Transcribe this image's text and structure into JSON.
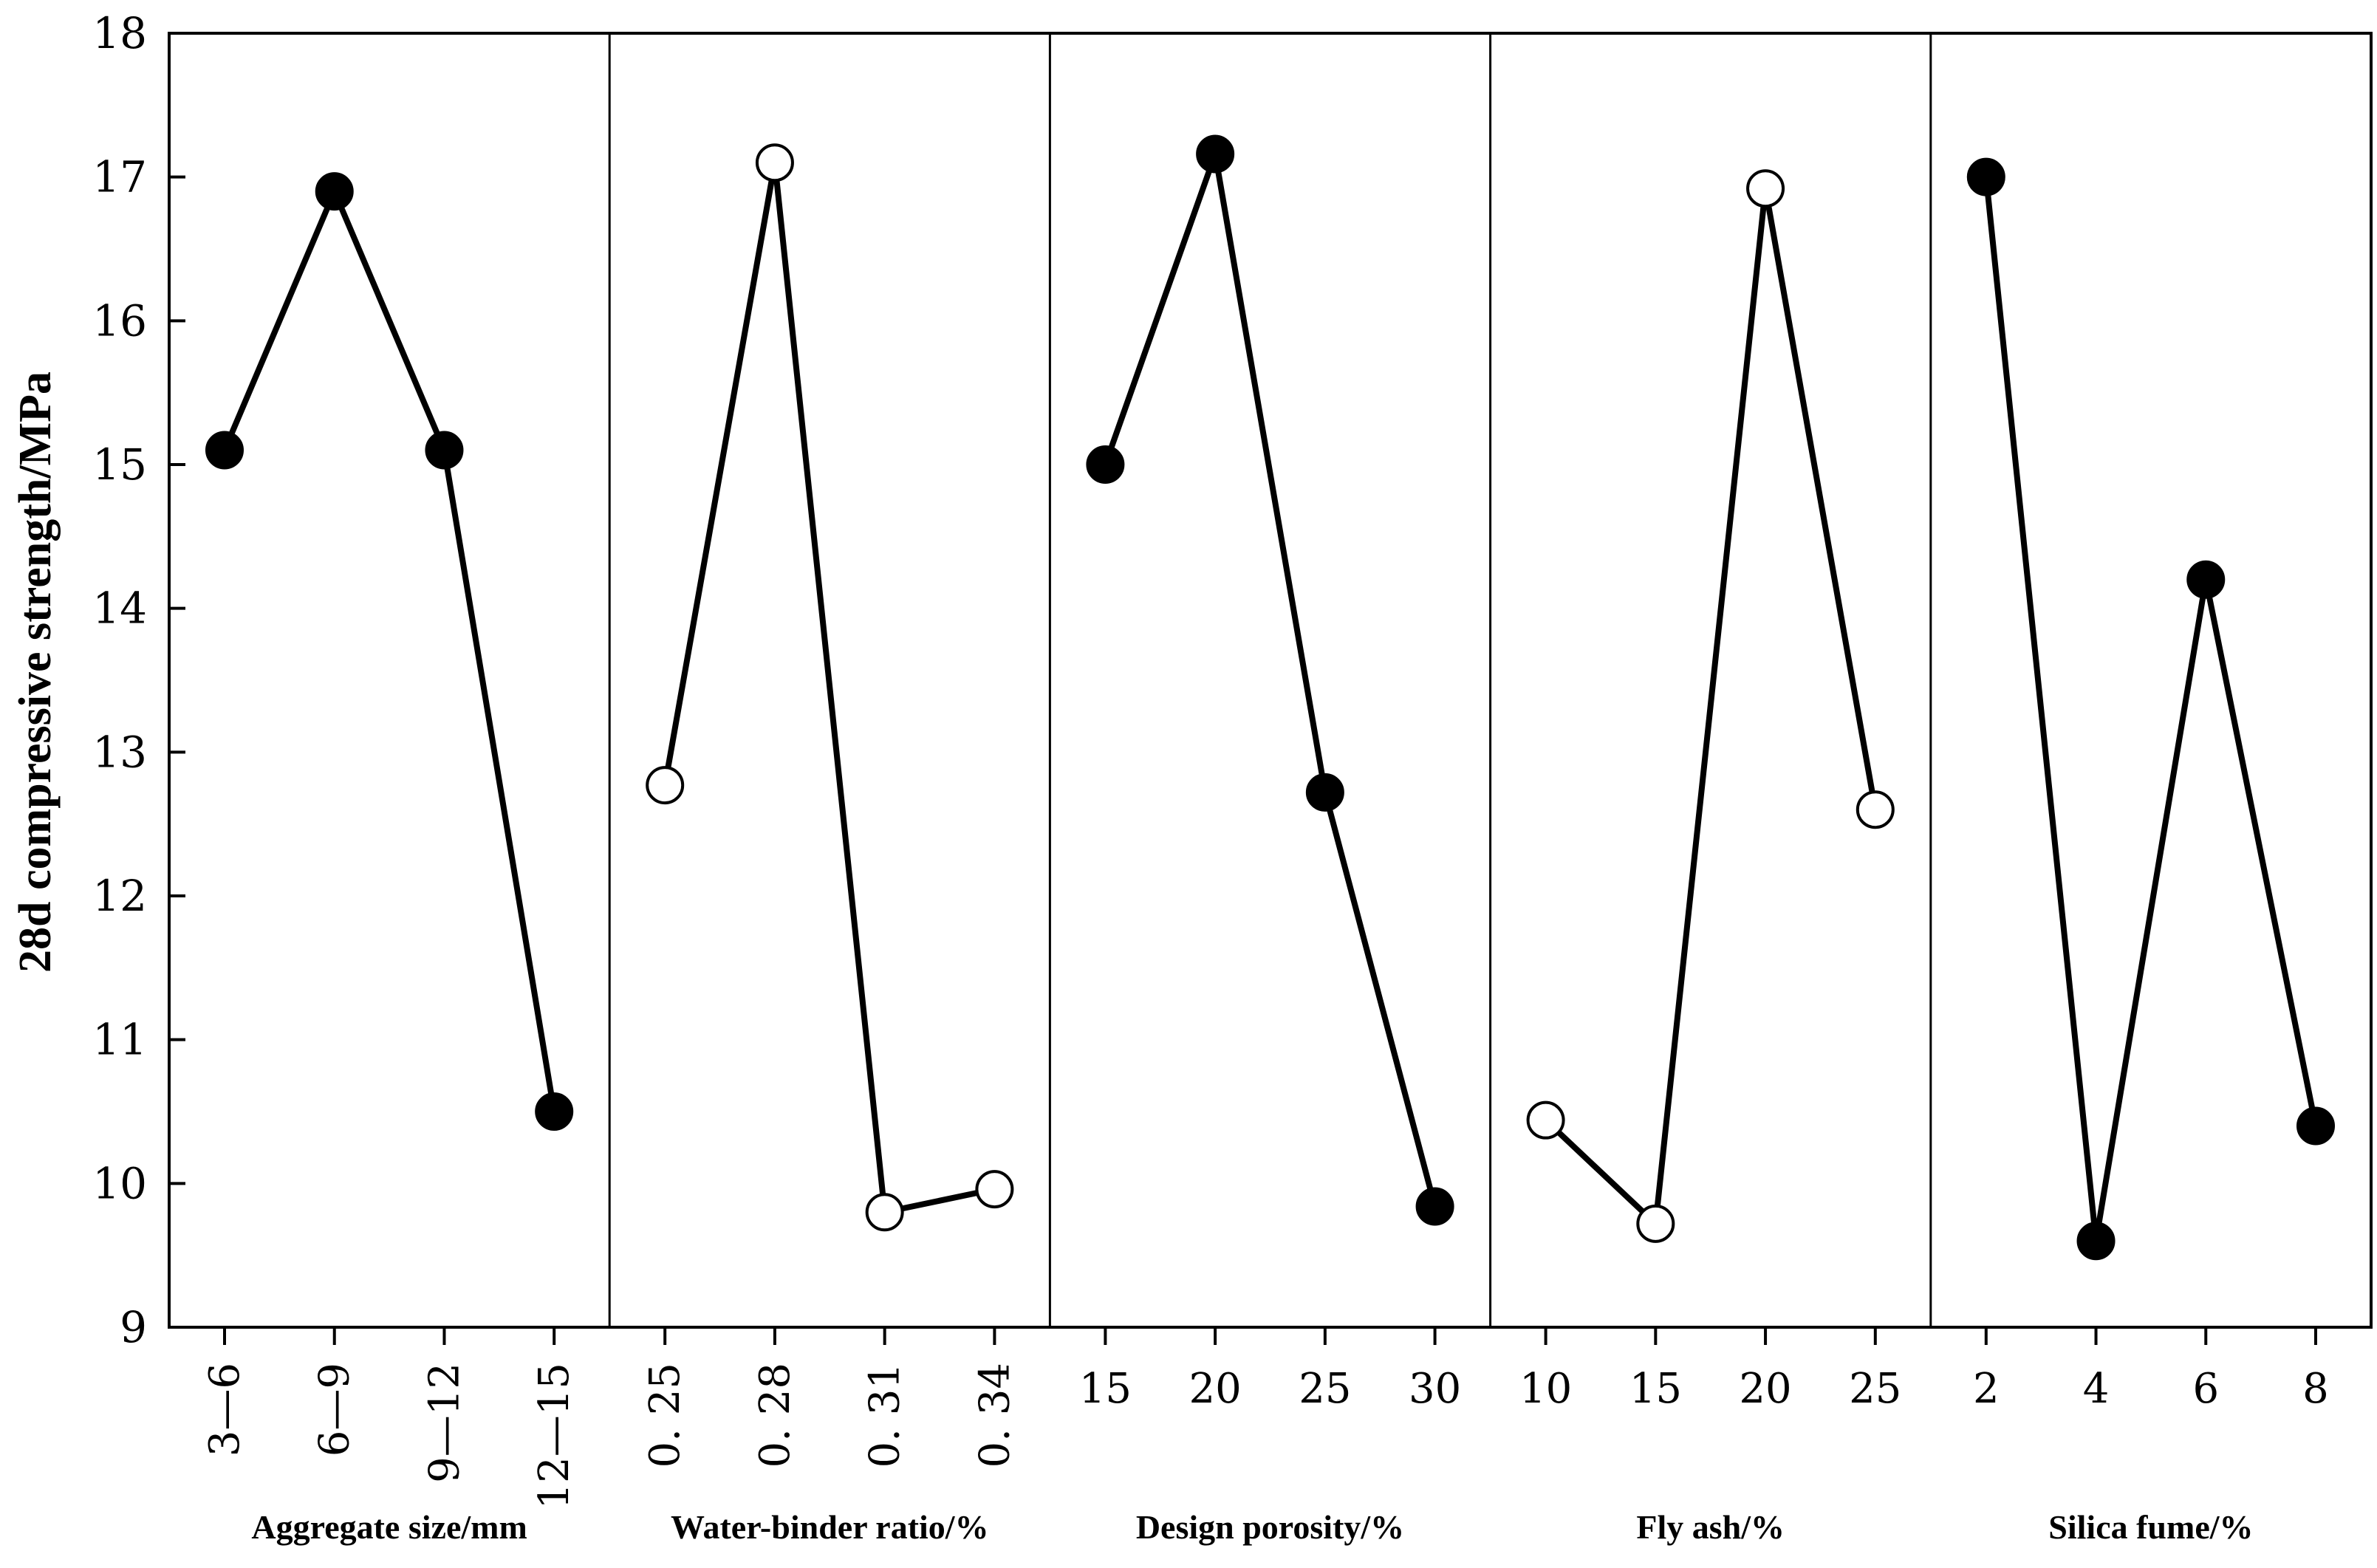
{
  "chart_data": {
    "type": "line",
    "ylabel": "28d compressive strength/MPa",
    "ylim": [
      9,
      18
    ],
    "yticks": [
      9,
      10,
      11,
      12,
      13,
      14,
      15,
      16,
      17,
      18
    ],
    "colors": {
      "line": "#000000",
      "filled": "#000000",
      "open": "#ffffff"
    },
    "panels": [
      {
        "label": "Aggregate size/mm",
        "categories": [
          "3—6",
          "6—9",
          "9—12",
          "12—15"
        ],
        "values": [
          15.1,
          16.9,
          15.1,
          10.5
        ],
        "marker": "filled",
        "x_tick_orientation": "vertical",
        "segments": [
          [
            0,
            1
          ],
          [
            1,
            2
          ],
          [
            2,
            3
          ]
        ]
      },
      {
        "label": "Water-binder ratio/%",
        "categories": [
          "0. 25",
          "0. 28",
          "0. 31",
          "0. 34"
        ],
        "values": [
          12.77,
          17.1,
          9.8,
          9.96
        ],
        "marker": "open",
        "x_tick_orientation": "vertical",
        "segments": [
          [
            0,
            1
          ],
          [
            1,
            2
          ],
          [
            2,
            3
          ]
        ]
      },
      {
        "label": "Design porosity/%",
        "categories": [
          "15",
          "20",
          "25",
          "30"
        ],
        "values": [
          15.0,
          17.16,
          12.72,
          9.84
        ],
        "marker": "filled",
        "x_tick_orientation": "horizontal",
        "segments": [
          [
            0,
            1
          ],
          [
            1,
            2
          ],
          [
            2,
            3
          ]
        ]
      },
      {
        "label": "Fly ash/%",
        "categories": [
          "10",
          "15",
          "20",
          "25"
        ],
        "values": [
          10.44,
          9.72,
          16.92,
          12.6
        ],
        "marker": "open",
        "x_tick_orientation": "horizontal",
        "segments": [
          [
            0,
            1
          ],
          [
            1,
            2
          ],
          [
            2,
            3
          ]
        ]
      },
      {
        "label": "Silica fume/%",
        "categories": [
          "2",
          "4",
          "6",
          "8"
        ],
        "values": [
          17.0,
          9.6,
          14.2,
          10.4
        ],
        "marker": "filled",
        "x_tick_orientation": "horizontal",
        "segments": [
          [
            0,
            1
          ],
          [
            1,
            2
          ],
          [
            2,
            3
          ]
        ]
      }
    ]
  }
}
